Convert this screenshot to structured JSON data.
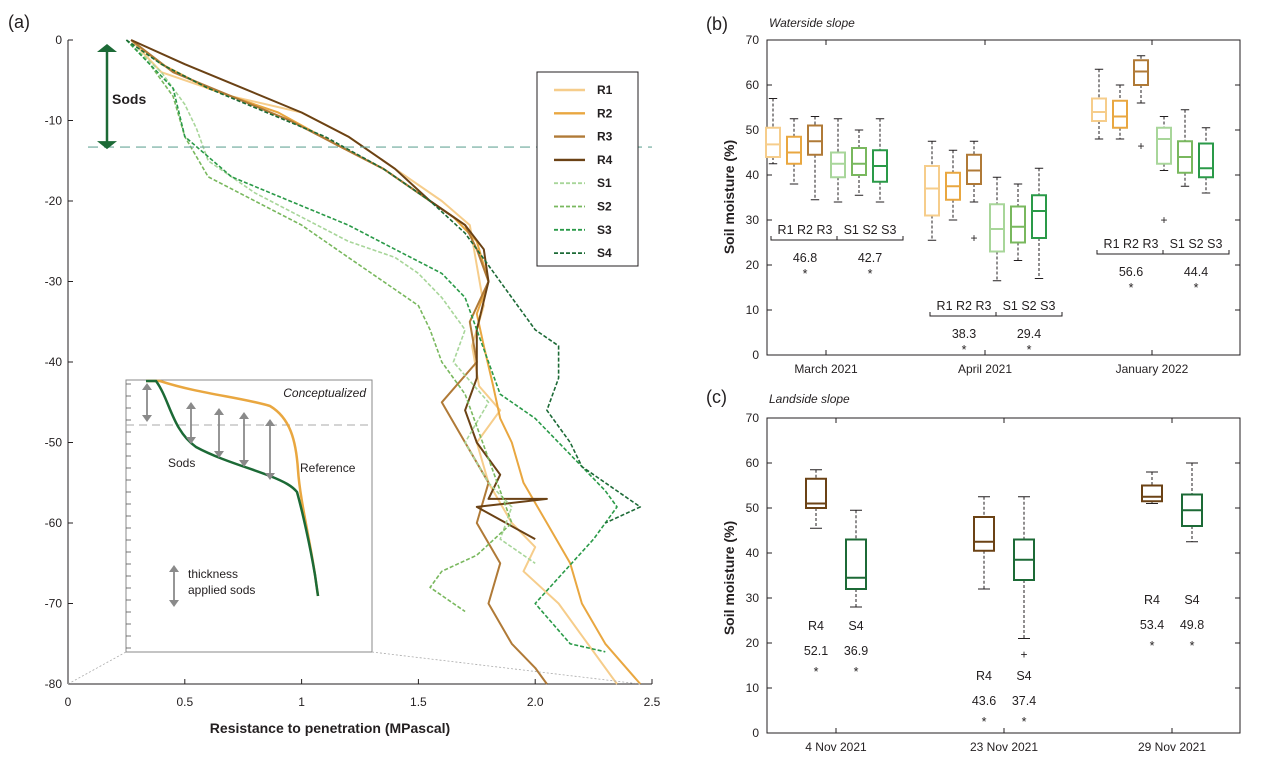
{
  "colors": {
    "R1": "#f6cd8b",
    "R2": "#e9a740",
    "R3": "#b07a37",
    "R4": "#6b4215",
    "S1": "#a8d69a",
    "S2": "#79b85e",
    "S3": "#2a9a48",
    "S4": "#1c6a36",
    "axis": "#231f20",
    "grey": "#8a8a8a",
    "dashed": "#6aa89a"
  },
  "panel_a": {
    "letter": "(a)",
    "xlabel": "Resistance to penetration (MPascal)",
    "sods_label": "Sods",
    "inset": {
      "title": "Conceptualized",
      "sods_label": "Sods",
      "reference_label": "Reference",
      "thickness_line1": "thickness",
      "thickness_line2": "applied sods"
    }
  },
  "panel_b": {
    "letter": "(b)",
    "subtitle": "Waterside slope",
    "ylabel": "Soil moisture (%)",
    "groups": [
      {
        "label": "March 2021",
        "annotation": {
          "left_labels": "R1 R2 R3",
          "right_labels": "S1 S2 S3",
          "left_mean": "46.8",
          "right_mean": "42.7",
          "left_star": "*",
          "right_star": "*"
        }
      },
      {
        "label": "April 2021",
        "annotation": {
          "left_labels": "R1 R2 R3",
          "right_labels": "S1 S2 S3",
          "left_mean": "38.3",
          "right_mean": "29.4",
          "left_star": "*",
          "right_star": "*"
        }
      },
      {
        "label": "January 2022",
        "annotation": {
          "left_labels": "R1 R2 R3",
          "right_labels": "S1 S2 S3",
          "left_mean": "56.6",
          "right_mean": "44.4",
          "left_star": "*",
          "right_star": "*"
        }
      }
    ]
  },
  "panel_c": {
    "letter": "(c)",
    "subtitle": "Landside slope",
    "ylabel": "Soil moisture (%)",
    "groups": [
      {
        "label": "4 Nov 2021",
        "annotation": {
          "left_label": "R4",
          "right_label": "S4",
          "left_mean": "52.1",
          "right_mean": "36.9",
          "left_star": "*",
          "right_star": "*"
        }
      },
      {
        "label": "23 Nov 2021",
        "annotation": {
          "left_label": "R4",
          "right_label": "S4",
          "left_mean": "43.6",
          "right_mean": "37.4",
          "left_star": "*",
          "right_star": "*"
        }
      },
      {
        "label": "29 Nov 2021",
        "annotation": {
          "left_label": "R4",
          "right_label": "S4",
          "left_mean": "53.4",
          "right_mean": "49.8",
          "left_star": "*",
          "right_star": "*"
        }
      }
    ]
  },
  "chart_data": [
    {
      "type": "line",
      "panel": "a",
      "xlabel": "Resistance to penetration (MPascal)",
      "ylabel": "",
      "xlim": [
        0,
        2.5
      ],
      "ylim": [
        -80,
        0
      ],
      "xticks": [
        "0",
        "0.5",
        "1",
        "1.5",
        "2.0",
        "2.5"
      ],
      "yticks": [
        "0",
        "-10",
        "-20",
        "-30",
        "-40",
        "-50",
        "-60",
        "-70",
        "-80"
      ],
      "sods_depth": -13.3,
      "legend_position": "top-right",
      "series": [
        {
          "name": "R1",
          "style": "solid",
          "x": [
            0.27,
            0.4,
            0.7,
            1.0,
            1.2,
            1.4,
            1.6,
            1.72,
            1.75,
            1.78,
            1.73,
            1.76,
            1.85,
            1.75,
            1.8,
            1.9,
            2.0,
            1.95,
            2.1,
            2.2,
            2.35
          ],
          "y": [
            0,
            -4,
            -7,
            -9,
            -12,
            -16,
            -20,
            -23,
            -28,
            -33,
            -38,
            -43,
            -46,
            -50,
            -55,
            -60,
            -63,
            -66,
            -70,
            -74,
            -80
          ]
        },
        {
          "name": "R2",
          "style": "solid",
          "x": [
            0.27,
            0.4,
            0.6,
            0.9,
            1.15,
            1.35,
            1.5,
            1.65,
            1.75,
            1.8,
            1.75,
            1.78,
            1.82,
            1.85,
            1.9,
            1.95,
            2.05,
            2.15,
            2.2,
            2.3,
            2.45
          ],
          "y": [
            0,
            -3,
            -6,
            -9,
            -13,
            -16,
            -19,
            -22,
            -25,
            -30,
            -34,
            -38,
            -43,
            -47,
            -50,
            -55,
            -60,
            -65,
            -70,
            -75,
            -80
          ]
        },
        {
          "name": "R3",
          "style": "solid",
          "x": [
            0.27,
            0.45,
            0.7,
            0.95,
            1.15,
            1.35,
            1.55,
            1.7,
            1.75,
            1.8,
            1.72,
            1.75,
            1.6,
            1.7,
            1.8,
            1.75,
            1.85,
            1.8,
            1.9,
            2.0,
            2.05
          ],
          "y": [
            0,
            -4,
            -7,
            -10,
            -13,
            -16,
            -20,
            -23,
            -26,
            -30,
            -35,
            -40,
            -45,
            -50,
            -55,
            -60,
            -65,
            -70,
            -75,
            -78,
            -80
          ]
        },
        {
          "name": "R4",
          "style": "solid",
          "x": [
            0.27,
            0.5,
            0.75,
            1.0,
            1.2,
            1.4,
            1.55,
            1.7,
            1.78,
            1.8,
            1.75,
            1.75,
            1.7,
            1.75,
            1.85,
            1.8,
            2.05,
            1.75,
            2.0
          ],
          "y": [
            0,
            -3,
            -6,
            -9,
            -12,
            -16,
            -20,
            -23,
            -26,
            -30,
            -36,
            -42,
            -46,
            -50,
            -54,
            -57,
            -57,
            -58,
            -62
          ]
        },
        {
          "name": "S1",
          "style": "dashed",
          "x": [
            0.25,
            0.4,
            0.5,
            0.55,
            0.6,
            0.8,
            1.0,
            1.2,
            1.4,
            1.5,
            1.6,
            1.7,
            1.65,
            1.8,
            1.7,
            1.8,
            1.9,
            1.85,
            2.0
          ],
          "y": [
            0,
            -4,
            -8,
            -11,
            -15,
            -19,
            -22,
            -25,
            -27,
            -29,
            -32,
            -36,
            -40,
            -45,
            -50,
            -55,
            -58,
            -62,
            -65
          ]
        },
        {
          "name": "S2",
          "style": "dashed",
          "x": [
            0.25,
            0.35,
            0.45,
            0.5,
            0.6,
            0.8,
            1.0,
            1.2,
            1.35,
            1.5,
            1.55,
            1.6,
            1.7,
            1.75,
            1.8,
            1.85,
            1.9,
            1.75,
            1.6,
            1.55,
            1.65,
            1.7
          ],
          "y": [
            0,
            -3,
            -7,
            -12,
            -17,
            -20,
            -23,
            -27,
            -30,
            -33,
            -36,
            -40,
            -44,
            -48,
            -52,
            -56,
            -60,
            -64,
            -66,
            -68,
            -70,
            -71
          ]
        },
        {
          "name": "S3",
          "style": "dashed",
          "x": [
            0.25,
            0.35,
            0.45,
            0.5,
            0.7,
            0.95,
            1.2,
            1.4,
            1.6,
            1.7,
            1.75,
            1.8,
            1.85,
            2.0,
            2.1,
            2.2,
            2.3,
            2.35,
            2.25,
            2.0,
            2.15,
            2.3
          ],
          "y": [
            0,
            -3,
            -6,
            -12,
            -17,
            -20,
            -23,
            -26,
            -29,
            -32,
            -36,
            -40,
            -44,
            -47,
            -50,
            -53,
            -56,
            -58,
            -62,
            -70,
            -75,
            -76
          ]
        },
        {
          "name": "S4",
          "style": "dashed",
          "x": [
            0.25,
            0.4,
            0.6,
            0.85,
            1.1,
            1.35,
            1.55,
            1.7,
            1.8,
            1.9,
            2.0,
            2.1,
            2.1,
            2.05,
            2.15,
            2.2,
            2.3,
            2.4,
            2.45,
            2.3
          ],
          "y": [
            0,
            -3,
            -6,
            -9,
            -12,
            -16,
            -20,
            -24,
            -28,
            -32,
            -36,
            -38,
            -42,
            -46,
            -50,
            -53,
            -55,
            -57,
            -58,
            -60
          ]
        }
      ]
    },
    {
      "type": "box",
      "panel": "b",
      "ylabel": "Soil moisture (%)",
      "ylim": [
        0,
        70
      ],
      "yticks": [
        "0",
        "10",
        "20",
        "30",
        "40",
        "50",
        "60",
        "70"
      ],
      "categories": [
        "March 2021",
        "April 2021",
        "January 2022"
      ],
      "boxes": [
        {
          "group": 0,
          "series": "R1",
          "min": 42.5,
          "q1": 44.0,
          "median": 46.8,
          "q3": 50.5,
          "max": 57.0,
          "outliers": []
        },
        {
          "group": 0,
          "series": "R2",
          "min": 38.0,
          "q1": 42.5,
          "median": 45.0,
          "q3": 48.5,
          "max": 52.5,
          "outliers": []
        },
        {
          "group": 0,
          "series": "R3",
          "min": 34.5,
          "q1": 44.5,
          "median": 47.5,
          "q3": 51.0,
          "max": 53.0,
          "outliers": []
        },
        {
          "group": 0,
          "series": "S1",
          "min": 34.0,
          "q1": 39.5,
          "median": 42.5,
          "q3": 45.0,
          "max": 52.5,
          "outliers": []
        },
        {
          "group": 0,
          "series": "S2",
          "min": 35.5,
          "q1": 40.0,
          "median": 42.5,
          "q3": 46.0,
          "max": 50.0,
          "outliers": []
        },
        {
          "group": 0,
          "series": "S3",
          "min": 34.0,
          "q1": 38.5,
          "median": 42.0,
          "q3": 45.5,
          "max": 52.5,
          "outliers": []
        },
        {
          "group": 1,
          "series": "R1",
          "min": 25.5,
          "q1": 31.0,
          "median": 37.0,
          "q3": 42.0,
          "max": 47.5,
          "outliers": []
        },
        {
          "group": 1,
          "series": "R2",
          "min": 30.0,
          "q1": 34.5,
          "median": 37.5,
          "q3": 40.5,
          "max": 45.5,
          "outliers": []
        },
        {
          "group": 1,
          "series": "R3",
          "min": 34.0,
          "q1": 38.0,
          "median": 41.0,
          "q3": 44.5,
          "max": 47.5,
          "outliers": [
            26.0
          ]
        },
        {
          "group": 1,
          "series": "S1",
          "min": 16.5,
          "q1": 23.0,
          "median": 28.0,
          "q3": 33.5,
          "max": 39.5,
          "outliers": []
        },
        {
          "group": 1,
          "series": "S2",
          "min": 21.0,
          "q1": 25.0,
          "median": 28.5,
          "q3": 33.0,
          "max": 38.0,
          "outliers": []
        },
        {
          "group": 1,
          "series": "S3",
          "min": 17.0,
          "q1": 26.0,
          "median": 32.0,
          "q3": 35.5,
          "max": 41.5,
          "outliers": []
        },
        {
          "group": 2,
          "series": "R1",
          "min": 48.0,
          "q1": 52.0,
          "median": 54.0,
          "q3": 57.0,
          "max": 63.5,
          "outliers": []
        },
        {
          "group": 2,
          "series": "R2",
          "min": 48.0,
          "q1": 50.5,
          "median": 53.0,
          "q3": 56.5,
          "max": 60.0,
          "outliers": []
        },
        {
          "group": 2,
          "series": "R3",
          "min": 56.0,
          "q1": 60.0,
          "median": 63.0,
          "q3": 65.5,
          "max": 66.5,
          "outliers": [
            46.5
          ]
        },
        {
          "group": 2,
          "series": "S1",
          "min": 41.0,
          "q1": 42.5,
          "median": 48.0,
          "q3": 50.5,
          "max": 53.0,
          "outliers": [
            30.0
          ]
        },
        {
          "group": 2,
          "series": "S2",
          "min": 37.5,
          "q1": 40.5,
          "median": 44.0,
          "q3": 47.5,
          "max": 54.5,
          "outliers": []
        },
        {
          "group": 2,
          "series": "S3",
          "min": 36.0,
          "q1": 39.5,
          "median": 41.5,
          "q3": 47.0,
          "max": 50.5,
          "outliers": []
        }
      ]
    },
    {
      "type": "box",
      "panel": "c",
      "ylabel": "Soil moisture (%)",
      "ylim": [
        0,
        70
      ],
      "yticks": [
        "0",
        "10",
        "20",
        "30",
        "40",
        "50",
        "60",
        "70"
      ],
      "categories": [
        "4 Nov 2021",
        "23 Nov 2021",
        "29 Nov 2021"
      ],
      "boxes": [
        {
          "group": 0,
          "series": "R4",
          "min": 45.5,
          "q1": 50.0,
          "median": 51.0,
          "q3": 56.5,
          "max": 58.5,
          "outliers": []
        },
        {
          "group": 0,
          "series": "S4",
          "min": 28.0,
          "q1": 32.0,
          "median": 34.5,
          "q3": 43.0,
          "max": 49.5,
          "outliers": []
        },
        {
          "group": 1,
          "series": "R4",
          "min": 32.0,
          "q1": 40.5,
          "median": 42.5,
          "q3": 48.0,
          "max": 52.5,
          "outliers": []
        },
        {
          "group": 1,
          "series": "S4",
          "min": 21.0,
          "q1": 34.0,
          "median": 38.5,
          "q3": 43.0,
          "max": 52.5,
          "outliers": [
            17.5
          ]
        },
        {
          "group": 2,
          "series": "R4",
          "min": 51.0,
          "q1": 51.5,
          "median": 52.5,
          "q3": 55.0,
          "max": 58.0,
          "outliers": []
        },
        {
          "group": 2,
          "series": "S4",
          "min": 42.5,
          "q1": 46.0,
          "median": 49.5,
          "q3": 53.0,
          "max": 60.0,
          "outliers": []
        }
      ]
    }
  ]
}
